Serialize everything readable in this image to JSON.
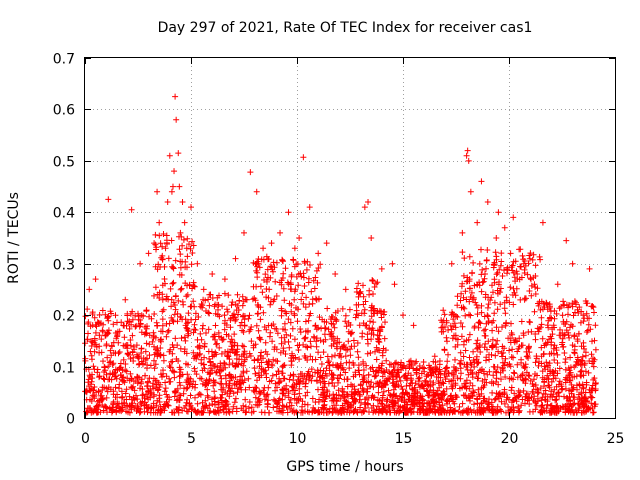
{
  "chart_data": {
    "type": "scatter",
    "title": "Day 297 of 2021, Rate Of TEC Index for receiver cas1",
    "xlabel": "GPS time / hours",
    "ylabel": "ROTI / TECUs",
    "xlim": [
      0,
      25
    ],
    "ylim": [
      0,
      0.7
    ],
    "xticks": [
      0,
      5,
      10,
      15,
      20,
      25
    ],
    "yticks": [
      0,
      0.1,
      0.2,
      0.3,
      0.4,
      0.5,
      0.6,
      0.7
    ],
    "xtick_labels": [
      "0",
      "5",
      "10",
      "15",
      "20",
      "25"
    ],
    "ytick_labels": [
      "0",
      "0.1",
      "0.2",
      "0.3",
      "0.4",
      "0.5",
      "0.6",
      "0.7"
    ],
    "grid": true,
    "marker": "+",
    "marker_color": "#ff0000",
    "series": [
      {
        "name": "cas1",
        "x": [
          0.2,
          0.5,
          1.1,
          1.9,
          2.2,
          2.6,
          3.0,
          3.4,
          3.5,
          3.8,
          3.9,
          4.0,
          4.1,
          4.15,
          4.2,
          4.25,
          4.3,
          4.4,
          4.45,
          4.5,
          4.6,
          4.7,
          4.8,
          5.0,
          5.3,
          5.6,
          6.0,
          6.3,
          6.6,
          7.1,
          7.5,
          7.8,
          8.1,
          8.4,
          8.8,
          9.2,
          9.6,
          9.9,
          10.1,
          10.3,
          10.6,
          11.0,
          11.4,
          11.8,
          12.3,
          12.8,
          13.2,
          13.35,
          13.5,
          14.0,
          14.5,
          14.6,
          15.0,
          15.5,
          16.0,
          16.5,
          16.8,
          17.3,
          17.8,
          18.0,
          18.05,
          18.1,
          18.2,
          18.5,
          18.7,
          19.0,
          19.4,
          19.5,
          19.8,
          20.2,
          20.7,
          21.2,
          21.6,
          21.8,
          22.3,
          22.7,
          23.0,
          23.5,
          23.8,
          24.0
        ],
        "y": [
          0.25,
          0.27,
          0.425,
          0.23,
          0.405,
          0.3,
          0.32,
          0.44,
          0.38,
          0.33,
          0.42,
          0.51,
          0.44,
          0.45,
          0.48,
          0.625,
          0.58,
          0.515,
          0.45,
          0.36,
          0.42,
          0.38,
          0.33,
          0.41,
          0.3,
          0.25,
          0.28,
          0.22,
          0.27,
          0.31,
          0.36,
          0.478,
          0.44,
          0.33,
          0.34,
          0.36,
          0.4,
          0.33,
          0.35,
          0.507,
          0.41,
          0.32,
          0.34,
          0.28,
          0.25,
          0.22,
          0.41,
          0.42,
          0.35,
          0.29,
          0.3,
          0.26,
          0.2,
          0.18,
          0.09,
          0.12,
          0.19,
          0.3,
          0.36,
          0.51,
          0.52,
          0.5,
          0.44,
          0.38,
          0.46,
          0.42,
          0.35,
          0.4,
          0.37,
          0.39,
          0.3,
          0.26,
          0.38,
          0.22,
          0.26,
          0.345,
          0.3,
          0.2,
          0.29,
          0.1
        ]
      }
    ]
  }
}
